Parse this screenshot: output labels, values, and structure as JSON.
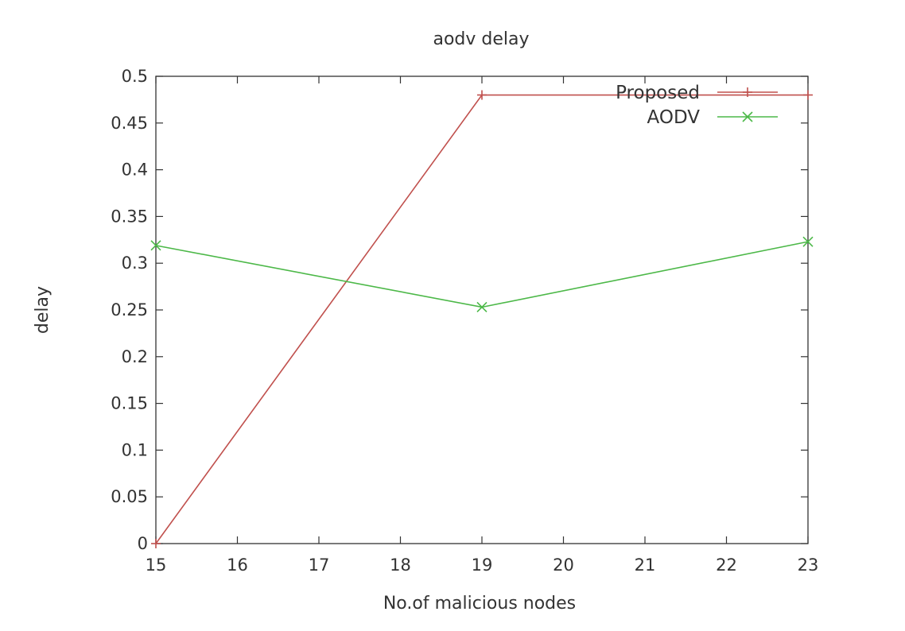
{
  "chart_data": {
    "type": "line",
    "title": "aodv delay",
    "xlabel": "No.of malicious nodes",
    "ylabel": "delay",
    "xlim": [
      15,
      23
    ],
    "ylim": [
      0,
      0.5
    ],
    "x_ticks": [
      "15",
      "16",
      "17",
      "18",
      "19",
      "20",
      "21",
      "22",
      "23"
    ],
    "y_ticks": [
      "0",
      "0.05",
      "0.1",
      "0.15",
      "0.2",
      "0.25",
      "0.3",
      "0.35",
      "0.4",
      "0.45",
      "0.5"
    ],
    "grid": false,
    "legend_position": "top-right",
    "series": [
      {
        "name": "Proposed",
        "color": "#c0504d",
        "marker": "plus",
        "x": [
          15,
          19,
          23
        ],
        "y": [
          0,
          0.48,
          0.48
        ]
      },
      {
        "name": "AODV",
        "color": "#4cb848",
        "marker": "cross",
        "x": [
          15,
          19,
          23
        ],
        "y": [
          0.319,
          0.253,
          0.323
        ]
      }
    ]
  }
}
